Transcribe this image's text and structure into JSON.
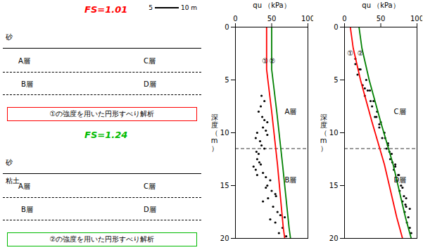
{
  "chart_data": [
    {
      "type": "diagram",
      "title": "FS=1.01",
      "color": "#FF0000",
      "caption": "①の強度を用いた円形すべり解析",
      "layer_labels": [
        "A層",
        "C層",
        "B層",
        "D層"
      ],
      "soil_labels": [
        "砂"
      ],
      "scale_labels": [
        "5",
        "10 m"
      ]
    },
    {
      "type": "diagram",
      "title": "FS=1.24",
      "color": "#00BB00",
      "caption": "②の強度を用いた円形すべり解析",
      "layer_labels": [
        "A層",
        "C層",
        "B層",
        "D層"
      ],
      "soil_labels": [
        "砂",
        "粘土"
      ]
    },
    {
      "type": "scatter",
      "x_label": "qu （kPa）",
      "y_label": "深度（m）",
      "xlim": [
        0,
        100
      ],
      "xticks": [
        0,
        50,
        100
      ],
      "ylim": [
        20,
        0
      ],
      "yticks": [
        0,
        5,
        10,
        15,
        20
      ],
      "layer_boundary": 11.5,
      "layer_labels": [
        {
          "text": "A層",
          "x": 68,
          "y": 8.0
        },
        {
          "text": "B層",
          "x": 68,
          "y": 14.5
        }
      ],
      "line_labels": [
        {
          "text": "①",
          "x": 41,
          "y": 3.2
        },
        {
          "text": "②",
          "x": 51,
          "y": 3.2
        }
      ],
      "series": [
        {
          "type": "scatter",
          "color": "black",
          "points": [
            [
              35,
              7.5
            ],
            [
              32,
              8
            ],
            [
              37,
              8.5
            ],
            [
              40,
              8.8
            ],
            [
              44,
              9.0
            ],
            [
              38,
              9.5
            ],
            [
              42,
              9.8
            ],
            [
              30,
              10
            ],
            [
              28,
              10.5
            ],
            [
              34,
              10.8
            ],
            [
              36,
              11.2
            ],
            [
              40,
              11.5
            ],
            [
              32,
              12
            ],
            [
              30,
              12.5
            ],
            [
              35,
              13
            ],
            [
              28,
              13.5
            ],
            [
              38,
              13.8
            ],
            [
              42,
              14.2
            ],
            [
              48,
              14.5
            ],
            [
              44,
              15
            ],
            [
              50,
              15.5
            ],
            [
              55,
              15.8
            ],
            [
              45,
              16.2
            ],
            [
              38,
              16.5
            ],
            [
              52,
              17
            ],
            [
              58,
              17.5
            ],
            [
              62,
              17.8
            ],
            [
              48,
              18.2
            ],
            [
              55,
              18.5
            ],
            [
              65,
              19
            ],
            [
              60,
              19.5
            ],
            [
              70,
              19.8
            ],
            [
              40,
              7
            ],
            [
              36,
              6.5
            ],
            [
              44,
              10.2
            ],
            [
              29,
              11.8
            ],
            [
              33,
              12.8
            ],
            [
              25,
              13.2
            ],
            [
              30,
              14
            ],
            [
              42,
              15.2
            ],
            [
              56,
              16
            ],
            [
              68,
              18
            ]
          ]
        },
        {
          "type": "line",
          "color": "red",
          "points": [
            [
              43,
              0
            ],
            [
              43,
              4
            ],
            [
              50,
              8
            ],
            [
              58,
              13
            ],
            [
              66,
              19
            ],
            [
              68,
              20
            ]
          ]
        },
        {
          "type": "line",
          "color": "green",
          "points": [
            [
              50,
              0
            ],
            [
              50,
              4
            ],
            [
              57,
              8
            ],
            [
              65,
              13
            ],
            [
              74,
              19
            ],
            [
              76,
              20
            ]
          ]
        }
      ]
    },
    {
      "type": "scatter",
      "x_label": "qu （kPa）",
      "y_label": "深度（m）",
      "xlim": [
        0,
        100
      ],
      "xticks": [
        0,
        50,
        100
      ],
      "ylim": [
        20,
        0
      ],
      "yticks": [
        0,
        5,
        10,
        15,
        20
      ],
      "layer_boundary": 11.5,
      "layer_labels": [
        {
          "text": "C層",
          "x": 68,
          "y": 8.0
        },
        {
          "text": "D層",
          "x": 68,
          "y": 14.5
        }
      ],
      "line_labels": [
        {
          "text": "①",
          "x": 8,
          "y": 2.5
        },
        {
          "text": "②",
          "x": 22,
          "y": 2.5
        }
      ],
      "series": [
        {
          "type": "scatter",
          "color": "black",
          "points": [
            [
              15,
              3
            ],
            [
              22,
              4
            ],
            [
              18,
              4.5
            ],
            [
              30,
              5
            ],
            [
              25,
              5.5
            ],
            [
              35,
              6
            ],
            [
              28,
              6.5
            ],
            [
              40,
              7
            ],
            [
              38,
              7.5
            ],
            [
              45,
              8
            ],
            [
              42,
              8.5
            ],
            [
              50,
              9
            ],
            [
              48,
              9.5
            ],
            [
              55,
              10
            ],
            [
              52,
              10.5
            ],
            [
              60,
              11
            ],
            [
              58,
              11.5
            ],
            [
              65,
              12
            ],
            [
              63,
              12.5
            ],
            [
              70,
              13
            ],
            [
              68,
              13.5
            ],
            [
              75,
              14
            ],
            [
              72,
              14.5
            ],
            [
              78,
              15
            ],
            [
              76,
              15.5
            ],
            [
              82,
              16
            ],
            [
              80,
              16.5
            ],
            [
              85,
              17
            ],
            [
              83,
              17.5
            ],
            [
              88,
              18
            ],
            [
              86,
              18.5
            ],
            [
              90,
              19
            ],
            [
              92,
              19.5
            ],
            [
              20,
              4
            ],
            [
              32,
              6
            ],
            [
              44,
              8.5
            ],
            [
              56,
              10.5
            ],
            [
              62,
              11.8
            ],
            [
              66,
              12.8
            ],
            [
              74,
              14
            ],
            [
              80,
              15.2
            ],
            [
              85,
              16.2
            ],
            [
              90,
              17.2
            ],
            [
              15,
              3.5
            ],
            [
              28,
              5.8
            ],
            [
              36,
              7
            ],
            [
              48,
              9.2
            ],
            [
              60,
              11.2
            ],
            [
              70,
              13.2
            ],
            [
              84,
              16.8
            ]
          ]
        },
        {
          "type": "line",
          "color": "red",
          "points": [
            [
              8,
              0
            ],
            [
              12,
              2
            ],
            [
              22,
              5
            ],
            [
              38,
              9
            ],
            [
              55,
              13
            ],
            [
              72,
              18
            ],
            [
              80,
              20
            ]
          ]
        },
        {
          "type": "line",
          "color": "green",
          "points": [
            [
              20,
              0
            ],
            [
              24,
              2
            ],
            [
              34,
              5
            ],
            [
              50,
              9
            ],
            [
              67,
              13
            ],
            [
              84,
              18
            ],
            [
              92,
              20
            ]
          ]
        }
      ]
    }
  ]
}
